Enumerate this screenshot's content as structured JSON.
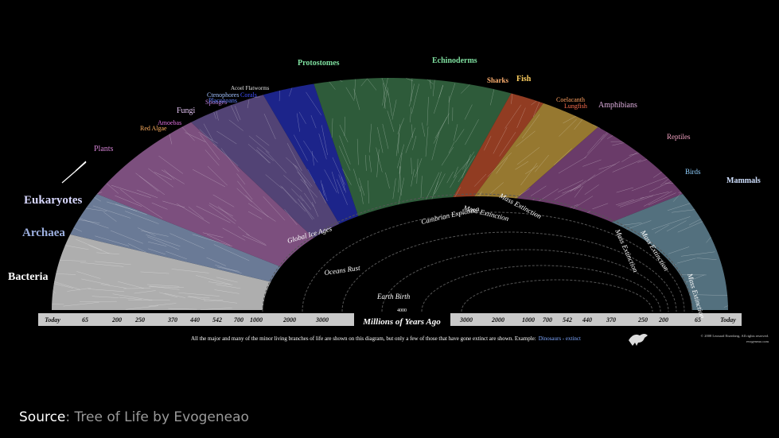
{
  "taxa": [
    "Bacteria",
    "Archaea",
    "Eukaryotes",
    "Plants",
    "Red Algae",
    "Amoebas",
    "Fungi",
    "Sponges",
    "Ctenophores",
    "Placozoans",
    "Corals",
    "Acoel Flatworms",
    "Protostomes",
    "Echinoderms",
    "Sharks",
    "Fish",
    "Coelacanth",
    "Lungfish",
    "Amphibians",
    "Reptiles",
    "Birds",
    "Mammals"
  ],
  "events": [
    "Global Ice Ages",
    "Oceans Rust",
    "Earth Birth",
    "Cambrian Explosion",
    "Mass Extinction",
    "Mass Extinction",
    "Mass Extinction",
    "Mass Extinction",
    "Mass Extinction"
  ],
  "timeline": {
    "left": [
      "Today",
      "65",
      "200",
      "250",
      "370",
      "440",
      "542",
      "700",
      "1000",
      "2000",
      "3000"
    ],
    "origin": "4000",
    "center": "Millions of Years Ago",
    "right": [
      "3000",
      "2000",
      "1000",
      "700",
      "542",
      "440",
      "370",
      "250",
      "200",
      "65",
      "Today"
    ]
  },
  "caption": {
    "text": "All the major and many of the minor living branches of life are shown on this diagram, but only a few of those that have gone extinct are shown. Example:",
    "example": "Dinosaurs - extinct"
  },
  "copyright": [
    "© 2008 Leonard Eisenberg. All rights reserved.",
    "evogeneao.com"
  ],
  "source": {
    "label": "Source",
    "text": ": Tree of Life by Evogeneao"
  }
}
